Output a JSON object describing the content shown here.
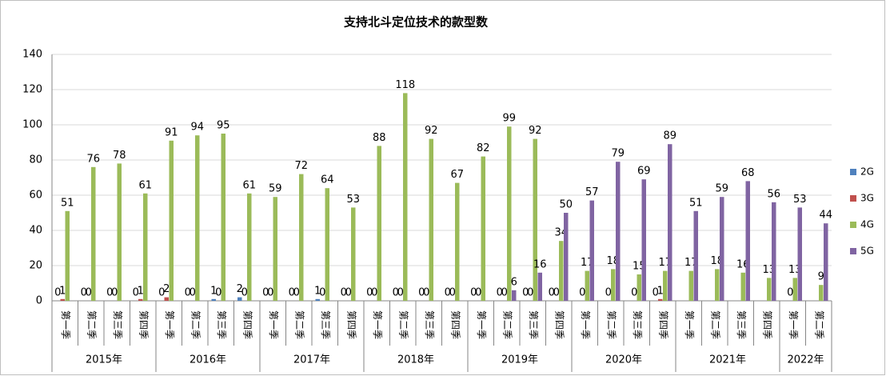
{
  "chart_data": {
    "type": "bar",
    "title": "支持北斗定位技术的款型数",
    "groups": [
      {
        "label": "2015年",
        "categories": [
          "第一季",
          "第二季",
          "第三季",
          "第四季"
        ]
      },
      {
        "label": "2016年",
        "categories": [
          "第一季",
          "第二季",
          "第三季",
          "第四季"
        ]
      },
      {
        "label": "2017年",
        "categories": [
          "第一季",
          "第二季",
          "第三季",
          "第四季"
        ]
      },
      {
        "label": "2018年",
        "categories": [
          "第一季",
          "第二季",
          "第三季",
          "第四季"
        ]
      },
      {
        "label": "2019年",
        "categories": [
          "第一季",
          "第二季",
          "第三季",
          "第四季"
        ]
      },
      {
        "label": "2020年",
        "categories": [
          "第一季",
          "第二季",
          "第三季",
          "第四季"
        ]
      },
      {
        "label": "2021年",
        "categories": [
          "第一季",
          "第二季",
          "第三季",
          "第四季"
        ]
      },
      {
        "label": "2022年",
        "categories": [
          "第一季",
          "第二季"
        ]
      }
    ],
    "series": [
      {
        "name": "2G",
        "color": "#4f81bd",
        "values": [
          0,
          0,
          0,
          0,
          0,
          0,
          1,
          2,
          0,
          0,
          1,
          0,
          0,
          0,
          0,
          0,
          0,
          0,
          0,
          0,
          null,
          null,
          null,
          0,
          null,
          null,
          null,
          null,
          null,
          null
        ]
      },
      {
        "name": "3G",
        "color": "#c0504d",
        "values": [
          1,
          0,
          0,
          1,
          2,
          0,
          0,
          0,
          0,
          0,
          0,
          0,
          0,
          0,
          0,
          0,
          0,
          0,
          0,
          0,
          0,
          0,
          0,
          1,
          null,
          null,
          null,
          null,
          0,
          null
        ]
      },
      {
        "name": "4G",
        "color": "#9bbb59",
        "values": [
          51,
          76,
          78,
          61,
          91,
          94,
          95,
          61,
          59,
          72,
          64,
          53,
          88,
          118,
          92,
          67,
          82,
          99,
          92,
          34,
          17,
          18,
          15,
          17,
          17,
          18,
          16,
          13,
          13,
          9
        ]
      },
      {
        "name": "5G",
        "color": "#8064a2",
        "values": [
          null,
          null,
          null,
          null,
          null,
          null,
          null,
          null,
          null,
          null,
          null,
          null,
          null,
          null,
          null,
          null,
          null,
          6,
          16,
          50,
          57,
          79,
          69,
          89,
          51,
          59,
          68,
          56,
          53,
          44
        ]
      }
    ],
    "ylim": [
      0,
      140
    ],
    "yticks": [
      0,
      20,
      40,
      60,
      80,
      100,
      120,
      140
    ],
    "grid": true,
    "legend": "right"
  }
}
